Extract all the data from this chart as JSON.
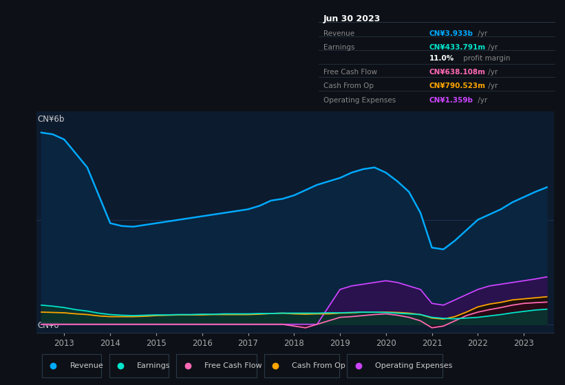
{
  "bg_color": "#0d1117",
  "plot_bg_color": "#0d1b2e",
  "panel_bg_color": "#000000",
  "grid_color": "#1a2a3a",
  "title_panel": {
    "date": "Jun 30 2023",
    "rows": [
      {
        "label": "Revenue",
        "value": "CN¥3.933b",
        "suffix": " /yr",
        "color": "#00aaff"
      },
      {
        "label": "Earnings",
        "value": "CN¥433.791m",
        "suffix": " /yr",
        "color": "#00e5cc"
      },
      {
        "label": "",
        "bold": "11.0%",
        "value": " profit margin",
        "color": "#ffffff"
      },
      {
        "label": "Free Cash Flow",
        "value": "CN¥638.108m",
        "suffix": " /yr",
        "color": "#ff69b4"
      },
      {
        "label": "Cash From Op",
        "value": "CN¥790.523m",
        "suffix": " /yr",
        "color": "#ffa500"
      },
      {
        "label": "Operating Expenses",
        "value": "CN¥1.359b",
        "suffix": " /yr",
        "color": "#cc44ff"
      }
    ]
  },
  "ylabel_top": "CN¥6b",
  "ylabel_bottom": "CN¥0",
  "x_years": [
    2012.5,
    2012.75,
    2013.0,
    2013.25,
    2013.5,
    2013.75,
    2014.0,
    2014.25,
    2014.5,
    2014.75,
    2015.0,
    2015.25,
    2015.5,
    2015.75,
    2016.0,
    2016.25,
    2016.5,
    2016.75,
    2017.0,
    2017.25,
    2017.5,
    2017.75,
    2018.0,
    2018.25,
    2018.5,
    2018.75,
    2019.0,
    2019.25,
    2019.5,
    2019.75,
    2020.0,
    2020.25,
    2020.5,
    2020.75,
    2021.0,
    2021.25,
    2021.5,
    2021.75,
    2022.0,
    2022.25,
    2022.5,
    2022.75,
    2023.0,
    2023.25,
    2023.5
  ],
  "revenue": [
    5.5,
    5.45,
    5.3,
    4.9,
    4.5,
    3.7,
    2.9,
    2.82,
    2.8,
    2.85,
    2.9,
    2.95,
    3.0,
    3.05,
    3.1,
    3.15,
    3.2,
    3.25,
    3.3,
    3.4,
    3.55,
    3.6,
    3.7,
    3.85,
    4.0,
    4.1,
    4.2,
    4.35,
    4.45,
    4.5,
    4.35,
    4.1,
    3.8,
    3.2,
    2.2,
    2.15,
    2.4,
    2.7,
    3.0,
    3.15,
    3.3,
    3.5,
    3.65,
    3.8,
    3.93
  ],
  "earnings": [
    0.55,
    0.52,
    0.48,
    0.42,
    0.38,
    0.32,
    0.28,
    0.26,
    0.25,
    0.26,
    0.27,
    0.27,
    0.28,
    0.28,
    0.29,
    0.29,
    0.3,
    0.3,
    0.3,
    0.31,
    0.31,
    0.32,
    0.32,
    0.32,
    0.32,
    0.33,
    0.33,
    0.34,
    0.35,
    0.35,
    0.34,
    0.32,
    0.3,
    0.28,
    0.2,
    0.17,
    0.16,
    0.18,
    0.2,
    0.24,
    0.28,
    0.33,
    0.37,
    0.41,
    0.434
  ],
  "free_cash_flow": [
    0.0,
    0.0,
    0.0,
    0.0,
    0.0,
    0.0,
    0.0,
    0.0,
    0.0,
    0.0,
    0.0,
    0.0,
    0.0,
    0.0,
    0.0,
    0.0,
    0.0,
    0.0,
    0.0,
    0.0,
    0.0,
    0.0,
    -0.05,
    -0.1,
    0.0,
    0.1,
    0.2,
    0.22,
    0.25,
    0.28,
    0.3,
    0.26,
    0.2,
    0.1,
    -0.1,
    -0.05,
    0.1,
    0.25,
    0.35,
    0.42,
    0.48,
    0.55,
    0.6,
    0.62,
    0.638
  ],
  "cash_from_op": [
    0.35,
    0.34,
    0.33,
    0.3,
    0.28,
    0.24,
    0.22,
    0.22,
    0.22,
    0.23,
    0.25,
    0.26,
    0.27,
    0.27,
    0.27,
    0.28,
    0.28,
    0.28,
    0.28,
    0.29,
    0.31,
    0.32,
    0.3,
    0.29,
    0.3,
    0.3,
    0.32,
    0.33,
    0.35,
    0.35,
    0.35,
    0.34,
    0.32,
    0.28,
    0.18,
    0.15,
    0.22,
    0.35,
    0.5,
    0.58,
    0.63,
    0.7,
    0.73,
    0.76,
    0.79
  ],
  "op_expenses": [
    0.0,
    0.0,
    0.0,
    0.0,
    0.0,
    0.0,
    0.0,
    0.0,
    0.0,
    0.0,
    0.0,
    0.0,
    0.0,
    0.0,
    0.0,
    0.0,
    0.0,
    0.0,
    0.0,
    0.0,
    0.0,
    0.0,
    0.0,
    0.0,
    0.0,
    0.5,
    1.0,
    1.1,
    1.15,
    1.2,
    1.25,
    1.2,
    1.1,
    1.0,
    0.6,
    0.55,
    0.7,
    0.85,
    1.0,
    1.1,
    1.15,
    1.2,
    1.25,
    1.3,
    1.359
  ],
  "revenue_color": "#00aaff",
  "earnings_color": "#00e5cc",
  "fcf_color": "#ff69b4",
  "cashop_color": "#ffa500",
  "opex_color": "#cc44ff",
  "legend": [
    {
      "label": "Revenue",
      "color": "#00aaff"
    },
    {
      "label": "Earnings",
      "color": "#00e5cc"
    },
    {
      "label": "Free Cash Flow",
      "color": "#ff69b4"
    },
    {
      "label": "Cash From Op",
      "color": "#ffa500"
    },
    {
      "label": "Operating Expenses",
      "color": "#cc44ff"
    }
  ],
  "xlim": [
    2012.4,
    2023.65
  ],
  "ylim": [
    -0.25,
    6.1
  ],
  "xtick_years": [
    2013,
    2014,
    2015,
    2016,
    2017,
    2018,
    2019,
    2020,
    2021,
    2022,
    2023
  ],
  "gridline_y": [
    0.0,
    3.0
  ]
}
